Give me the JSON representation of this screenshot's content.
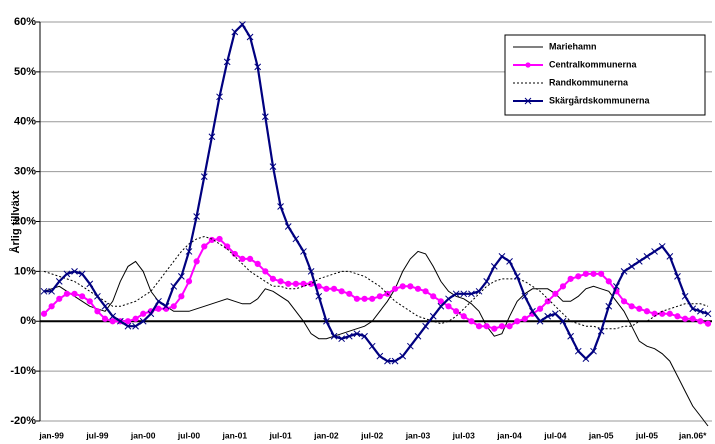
{
  "chart_data": {
    "type": "line",
    "y_label": "Årlig tillväxt",
    "categories": [
      null,
      "jan-99",
      null,
      null,
      null,
      null,
      null,
      "jul-99",
      null,
      null,
      null,
      null,
      null,
      "jan-00",
      null,
      null,
      null,
      null,
      null,
      "jul-00",
      null,
      null,
      null,
      null,
      null,
      "jan-01",
      null,
      null,
      null,
      null,
      null,
      "jul-01",
      null,
      null,
      null,
      null,
      null,
      "jan-02",
      null,
      null,
      null,
      null,
      null,
      "jul-02",
      null,
      null,
      null,
      null,
      null,
      "jan-03",
      null,
      null,
      null,
      null,
      null,
      "jul-03",
      null,
      null,
      null,
      null,
      null,
      "jan-04",
      null,
      null,
      null,
      null,
      null,
      "jul-04",
      null,
      null,
      null,
      null,
      null,
      "jan-05",
      null,
      null,
      null,
      null,
      null,
      "jul-05",
      null,
      null,
      null,
      null,
      null,
      "jan.06*",
      null,
      null
    ],
    "series": [
      {
        "name": "Mariehamn",
        "color": "#000000",
        "dash": "solid",
        "marker": "none",
        "values": [
          6,
          6.5,
          7,
          6,
          5,
          4,
          3,
          2.5,
          2,
          4,
          8,
          11,
          12,
          10,
          6,
          4,
          3,
          2,
          2,
          2,
          2.5,
          3,
          3.5,
          4,
          4.5,
          4,
          3.5,
          3.5,
          4.5,
          6.5,
          6,
          5,
          4,
          2,
          0,
          -2.5,
          -3.5,
          -3.5,
          -3,
          -2.5,
          -2,
          -1.5,
          -1,
          0,
          2,
          4,
          6.5,
          10,
          12.5,
          14,
          13.5,
          11,
          8,
          6,
          5,
          4.5,
          3.5,
          2,
          -1,
          -3,
          -2.5,
          1,
          4,
          5.5,
          6.5,
          6.5,
          6.5,
          5.5,
          4,
          4,
          5,
          6.5,
          7,
          6.5,
          6,
          4,
          2,
          -1,
          -4,
          -5,
          -5.5,
          -6.5,
          -8,
          -11,
          -14,
          -17,
          -19,
          -21
        ]
      },
      {
        "name": "Centralkommunerna",
        "color": "#ff00ff",
        "dash": "solid",
        "marker": "circle",
        "values": [
          1.5,
          3,
          4.5,
          5.5,
          5.5,
          5,
          4,
          2,
          0.5,
          0,
          0,
          0,
          0.5,
          1.5,
          2,
          2.5,
          2.5,
          3,
          5,
          8,
          12,
          15,
          16.3,
          16.5,
          15,
          13.5,
          12.5,
          12.5,
          11.5,
          10,
          8.5,
          8,
          7.5,
          7.5,
          7.5,
          7.5,
          7,
          6.5,
          6.5,
          6,
          5.5,
          4.5,
          4.5,
          4.5,
          5,
          5.5,
          6.5,
          7,
          7,
          6.5,
          6,
          5,
          4,
          3,
          2,
          1,
          0,
          -1,
          -1,
          -1.5,
          -1,
          -1,
          0,
          0.5,
          1.5,
          2.5,
          4,
          5.5,
          7,
          8.5,
          9,
          9.5,
          9.5,
          9.5,
          8,
          6,
          4,
          3,
          2.5,
          2,
          1.5,
          1.5,
          1.5,
          1,
          0.5,
          0.5,
          0,
          -0.5
        ]
      },
      {
        "name": "Randkommunerna",
        "color": "#000000",
        "dash": "dotted",
        "marker": "none",
        "values": [
          10,
          9.5,
          9,
          8.5,
          8,
          7,
          6,
          5,
          4,
          3,
          3,
          3.5,
          4,
          5,
          6,
          8,
          10,
          12,
          14,
          15.5,
          16.5,
          17,
          16.5,
          15.5,
          14.5,
          13,
          11.5,
          10,
          9,
          8,
          7,
          7,
          6.5,
          6.5,
          7,
          7.5,
          8.5,
          9,
          9.5,
          10,
          10,
          9.5,
          9,
          8,
          7,
          5.5,
          4,
          3,
          2,
          1,
          0.5,
          0,
          -0.5,
          0,
          1,
          2.5,
          4,
          5.5,
          7,
          8,
          8.5,
          8.5,
          8.5,
          8,
          7,
          6,
          4.5,
          3,
          1.5,
          0,
          -0.5,
          -1,
          -1,
          -1.5,
          -1.5,
          -1.5,
          -1,
          -1,
          0,
          0,
          1,
          2,
          2.5,
          3,
          3.5,
          3.5,
          3.5,
          3
        ]
      },
      {
        "name": "Skärgårdskommunerna",
        "color": "#000080",
        "dash": "solid",
        "marker": "x",
        "values": [
          6,
          6,
          8,
          9.5,
          10,
          9.5,
          7.5,
          5,
          3,
          1,
          0,
          -1,
          -1,
          0,
          1.5,
          4,
          3,
          7,
          9,
          14,
          21,
          29,
          37,
          45,
          52,
          58,
          59.5,
          57,
          51,
          41,
          31,
          23,
          19,
          16.5,
          14,
          10,
          5,
          0,
          -3,
          -3.5,
          -3,
          -2.5,
          -3,
          -5,
          -7,
          -8,
          -8,
          -7,
          -5,
          -3,
          -1,
          1,
          3,
          4.5,
          5.5,
          5.5,
          5.5,
          6,
          8,
          11,
          13,
          12,
          9,
          5,
          2,
          0,
          1,
          1.5,
          0,
          -3,
          -6,
          -7.5,
          -6,
          -2,
          3,
          7,
          10,
          11,
          12,
          13,
          14,
          15,
          13,
          9,
          5,
          2.5,
          2,
          1.5
        ]
      }
    ],
    "ylim": [
      -20,
      60
    ],
    "yticks": [
      {
        "value": -20,
        "label": "-20%"
      },
      {
        "value": -10,
        "label": "-10%"
      },
      {
        "value": 0,
        "label": "0%"
      },
      {
        "value": 10,
        "label": "10%"
      },
      {
        "value": 20,
        "label": "20%"
      },
      {
        "value": 30,
        "label": "30%"
      },
      {
        "value": 40,
        "label": "40%"
      },
      {
        "value": 50,
        "label": "50%"
      },
      {
        "value": 60,
        "label": "60%"
      }
    ],
    "grid": true,
    "legend": "top-right"
  }
}
